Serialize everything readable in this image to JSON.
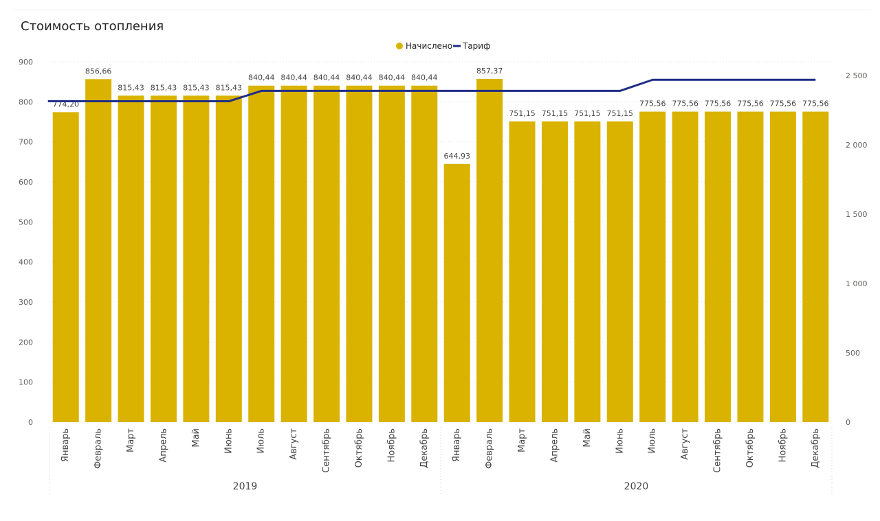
{
  "chart_data": {
    "type": "bar",
    "title": "Стоимость отопления",
    "legend": {
      "placement": "top-center",
      "items": [
        {
          "label": "Начислено",
          "color": "#D9B300",
          "shape": "dot"
        },
        {
          "label": "Тариф",
          "color": "#1F2D86",
          "shape": "line"
        }
      ]
    },
    "groups": [
      {
        "label": "2019",
        "categories": [
          "Январь",
          "Февраль",
          "Март",
          "Апрель",
          "Май",
          "Июнь",
          "Июль",
          "Август",
          "Сентябрь",
          "Октябрь",
          "Ноябрь",
          "Декабрь"
        ]
      },
      {
        "label": "2020",
        "categories": [
          "Январь",
          "Февраль",
          "Март",
          "Апрель",
          "Май",
          "Июнь",
          "Июль",
          "Август",
          "Сентябрь",
          "Октябрь",
          "Ноябрь",
          "Декабрь"
        ]
      }
    ],
    "series": [
      {
        "name": "Начислено",
        "type": "bar",
        "axis": "left",
        "color": "#D9B300",
        "values": [
          774.2,
          856.66,
          815.43,
          815.43,
          815.43,
          815.43,
          840.44,
          840.44,
          840.44,
          840.44,
          840.44,
          840.44,
          644.93,
          857.37,
          751.15,
          751.15,
          751.15,
          751.15,
          775.56,
          775.56,
          775.56,
          775.56,
          775.56,
          775.56
        ],
        "labels": [
          "774,20",
          "856,66",
          "815,43",
          "815,43",
          "815,43",
          "815,43",
          "840,44",
          "840,44",
          "840,44",
          "840,44",
          "840,44",
          "840,44",
          "644,93",
          "857,37",
          "751,15",
          "751,15",
          "751,15",
          "751,15",
          "775,56",
          "775,56",
          "775,56",
          "775,56",
          "775,56",
          "775,56"
        ]
      },
      {
        "name": "Тариф",
        "type": "line",
        "axis": "right",
        "color": "#1F2D86",
        "values": [
          2315,
          2315,
          2315,
          2315,
          2315,
          2315,
          2390,
          2390,
          2390,
          2390,
          2390,
          2390,
          2390,
          2390,
          2390,
          2390,
          2390,
          2390,
          2470,
          2470,
          2470,
          2470,
          2470,
          2470
        ]
      }
    ],
    "y_left": {
      "min": 0,
      "max": 900,
      "ticks": [
        0,
        100,
        200,
        300,
        400,
        500,
        600,
        700,
        800,
        900
      ],
      "tick_labels": [
        "0",
        "100",
        "200",
        "300",
        "400",
        "500",
        "600",
        "700",
        "800",
        "900"
      ]
    },
    "y_right": {
      "min": 0,
      "max": 2600,
      "ticks": [
        0,
        500,
        1000,
        1500,
        2000,
        2500
      ],
      "tick_labels": [
        "0",
        "500",
        "1 000",
        "1 500",
        "2 000",
        "2 500"
      ]
    },
    "grid": true
  }
}
